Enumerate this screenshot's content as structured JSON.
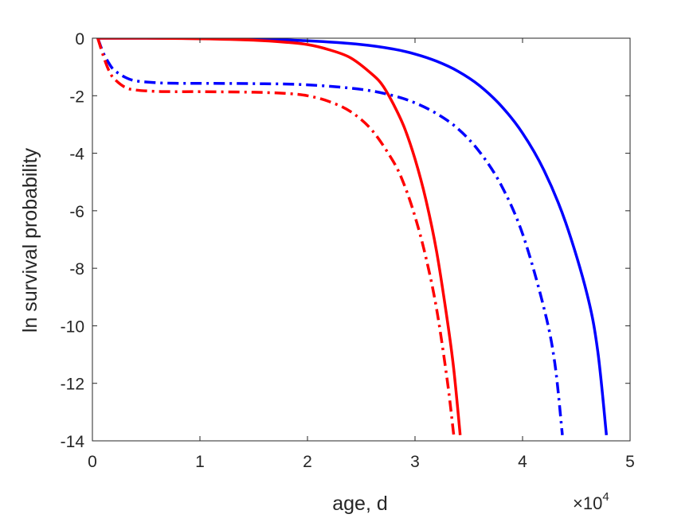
{
  "chart_data": {
    "type": "line",
    "title": "",
    "xlabel": "age, d",
    "ylabel": "ln survival probability",
    "x_multiplier": {
      "base": "10",
      "exponent": "4",
      "symbol": "×"
    },
    "xlim": [
      0,
      5
    ],
    "ylim": [
      -14,
      0
    ],
    "xticks": [
      "0",
      "1",
      "2",
      "3",
      "4",
      "5"
    ],
    "yticks": [
      "0",
      "-2",
      "-4",
      "-6",
      "-8",
      "-10",
      "-12",
      "-14"
    ],
    "xtick_values": [
      0,
      1,
      2,
      3,
      4,
      5
    ],
    "ytick_values": [
      0,
      -2,
      -4,
      -6,
      -8,
      -10,
      -12,
      -14
    ],
    "grid": false,
    "series": [
      {
        "color": "#0000ff",
        "style": "solid",
        "x": [
          0.05,
          0.5,
          1.0,
          1.5,
          2.0,
          2.5,
          2.8,
          3.0,
          3.2,
          3.4,
          3.6,
          3.8,
          4.0,
          4.2,
          4.4,
          4.6,
          4.7,
          4.78
        ],
        "y": [
          0,
          0,
          -0.01,
          -0.03,
          -0.09,
          -0.22,
          -0.38,
          -0.55,
          -0.8,
          -1.15,
          -1.65,
          -2.35,
          -3.3,
          -4.6,
          -6.4,
          -8.9,
          -10.9,
          -13.8
        ]
      },
      {
        "color": "#0000ff",
        "style": "dashdot",
        "x": [
          0.05,
          0.1,
          0.15,
          0.2,
          0.3,
          0.4,
          0.6,
          0.8,
          1.0,
          1.5,
          2.0,
          2.5,
          2.8,
          3.0,
          3.2,
          3.4,
          3.6,
          3.8,
          4.0,
          4.2,
          4.3,
          4.37
        ],
        "y": [
          0,
          -0.5,
          -0.85,
          -1.1,
          -1.35,
          -1.48,
          -1.55,
          -1.57,
          -1.57,
          -1.58,
          -1.62,
          -1.78,
          -2.0,
          -2.25,
          -2.62,
          -3.15,
          -3.95,
          -5.1,
          -6.8,
          -9.4,
          -11.3,
          -13.8
        ]
      },
      {
        "color": "#ff0000",
        "style": "solid",
        "x": [
          0.05,
          0.5,
          1.0,
          1.5,
          1.8,
          2.0,
          2.2,
          2.4,
          2.6,
          2.7,
          2.8,
          2.9,
          3.0,
          3.1,
          3.2,
          3.3,
          3.36,
          3.42
        ],
        "y": [
          0,
          0,
          -0.02,
          -0.07,
          -0.14,
          -0.22,
          -0.4,
          -0.68,
          -1.25,
          -1.65,
          -2.3,
          -3.1,
          -4.2,
          -5.6,
          -7.4,
          -9.8,
          -11.5,
          -13.8
        ]
      },
      {
        "color": "#ff0000",
        "style": "dashdot",
        "x": [
          0.05,
          0.1,
          0.15,
          0.2,
          0.3,
          0.4,
          0.6,
          0.8,
          1.0,
          1.5,
          1.8,
          2.0,
          2.2,
          2.4,
          2.6,
          2.8,
          2.9,
          3.0,
          3.1,
          3.2,
          3.3,
          3.36
        ],
        "y": [
          0,
          -0.6,
          -1.1,
          -1.4,
          -1.7,
          -1.8,
          -1.85,
          -1.86,
          -1.86,
          -1.88,
          -1.92,
          -2.0,
          -2.2,
          -2.55,
          -3.2,
          -4.3,
          -5.1,
          -6.2,
          -7.6,
          -9.4,
          -11.9,
          -13.8
        ]
      }
    ]
  }
}
